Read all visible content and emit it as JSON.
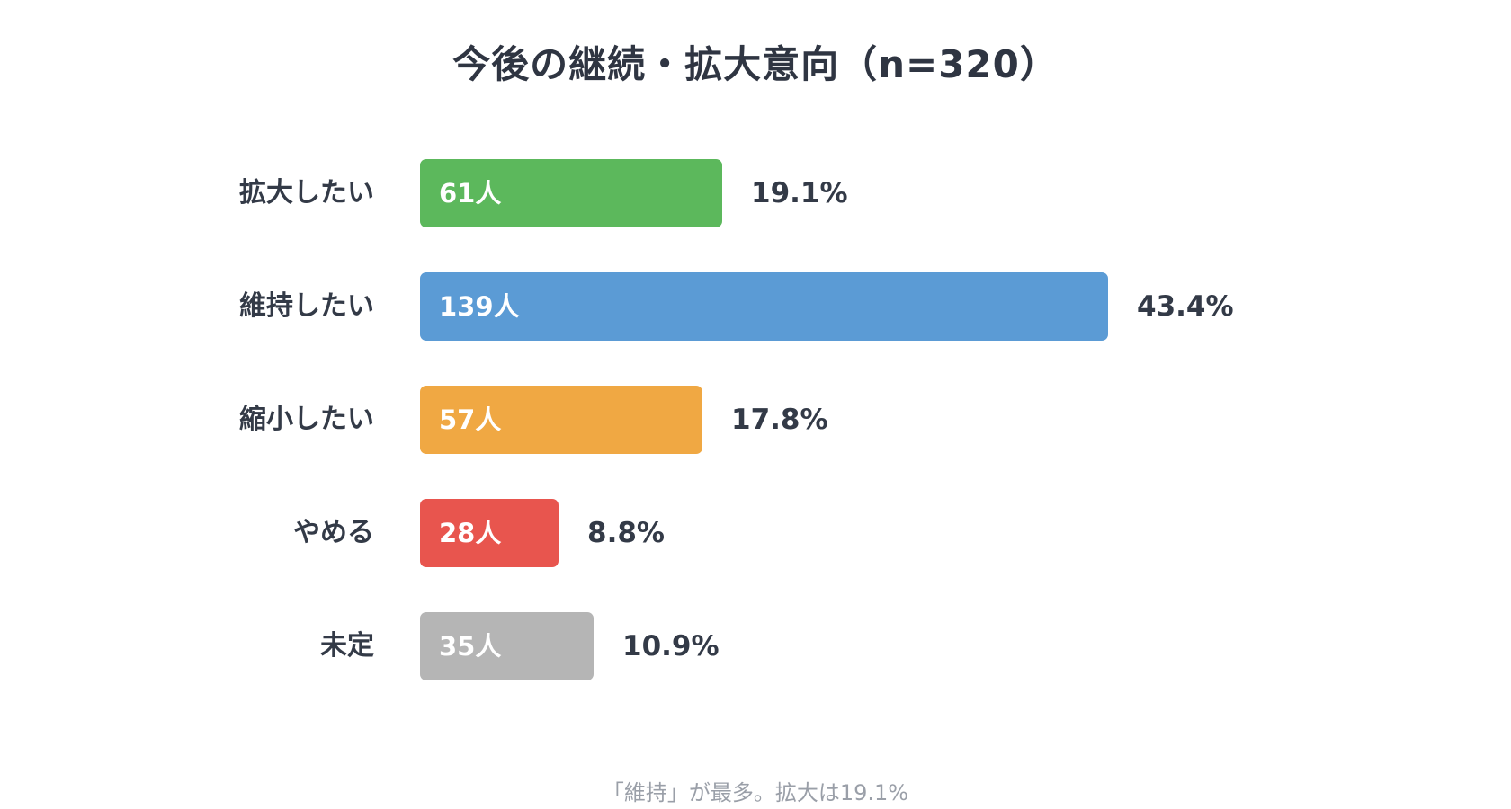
{
  "chart_data": {
    "type": "bar",
    "orientation": "horizontal",
    "title": "今後の継続・拡大意向（n=320）",
    "categories": [
      "拡大したい",
      "維持したい",
      "縮小したい",
      "やめる",
      "未定"
    ],
    "values": [
      61,
      139,
      57,
      28,
      35
    ],
    "value_labels": [
      "61人",
      "139人",
      "57人",
      "28人",
      "35人"
    ],
    "percent_labels": [
      "19.1%",
      "43.4%",
      "17.8%",
      "8.8%",
      "10.9%"
    ],
    "percents": [
      19.1,
      43.4,
      17.8,
      8.8,
      10.9
    ],
    "colors": [
      "#5cb85c",
      "#5b9bd5",
      "#f0a843",
      "#e8554e",
      "#b5b5b5"
    ],
    "xlim": [
      0,
      139
    ],
    "grid": false,
    "legend": "none",
    "note": "「維持」が最多。拡大は19.1%"
  }
}
